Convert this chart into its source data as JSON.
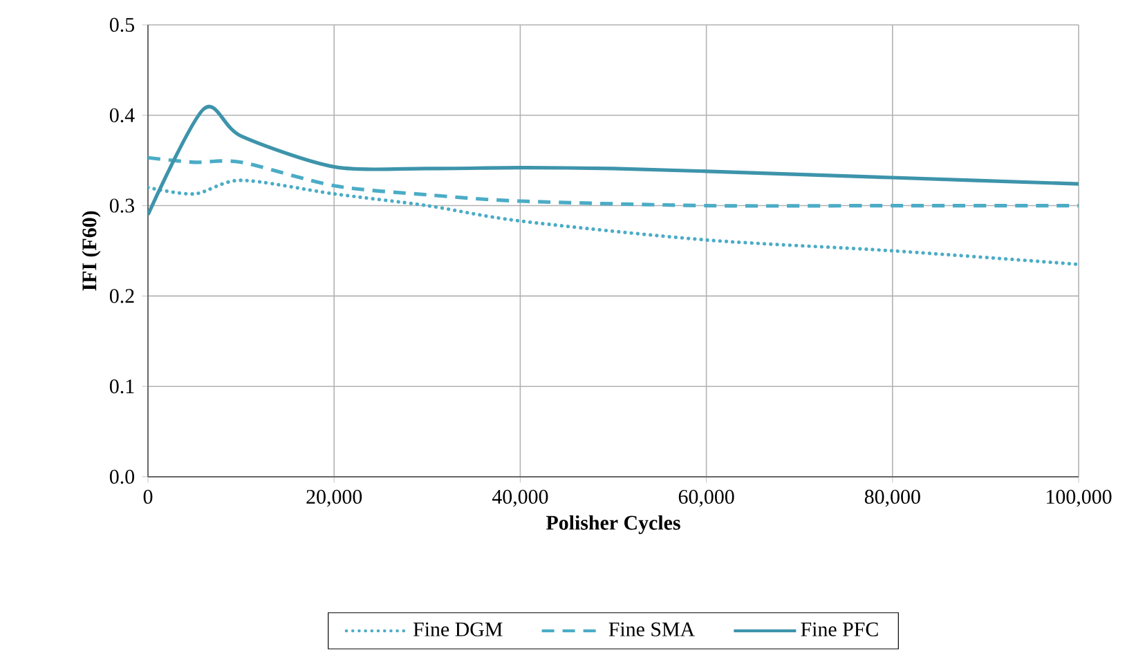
{
  "chart_data": {
    "type": "line",
    "xlabel": "Polisher Cycles",
    "ylabel": "IFI (F60)",
    "xlim": [
      0,
      100000
    ],
    "ylim": [
      0,
      0.5
    ],
    "xticks": [
      {
        "value": 0,
        "label": "0"
      },
      {
        "value": 20000,
        "label": "20,000"
      },
      {
        "value": 40000,
        "label": "40,000"
      },
      {
        "value": 60000,
        "label": "60,000"
      },
      {
        "value": 80000,
        "label": "80,000"
      },
      {
        "value": 100000,
        "label": "100,000"
      }
    ],
    "yticks": [
      {
        "value": 0,
        "label": "0.0"
      },
      {
        "value": 0.1,
        "label": "0.1"
      },
      {
        "value": 0.2,
        "label": "0.2"
      },
      {
        "value": 0.3,
        "label": "0.3"
      },
      {
        "value": 0.4,
        "label": "0.4"
      },
      {
        "value": 0.5,
        "label": "0.5"
      }
    ],
    "grid": true,
    "legend": "bottom",
    "series": [
      {
        "name": "Fine DGM",
        "color": "#4bacc6",
        "line_style": "dotted",
        "x": [
          0,
          5000,
          10000,
          20000,
          30000,
          40000,
          60000,
          80000,
          100000
        ],
        "values": [
          0.32,
          0.313,
          0.328,
          0.313,
          0.3,
          0.283,
          0.262,
          0.25,
          0.235
        ]
      },
      {
        "name": "Fine SMA",
        "color": "#4bacc6",
        "line_style": "dashed",
        "x": [
          0,
          5000,
          10000,
          20000,
          30000,
          40000,
          60000,
          80000,
          100000
        ],
        "values": [
          0.353,
          0.348,
          0.348,
          0.322,
          0.312,
          0.305,
          0.3,
          0.3,
          0.3
        ]
      },
      {
        "name": "Fine PFC",
        "color": "#3d94ab",
        "line_style": "solid",
        "x": [
          0,
          6000,
          10000,
          20000,
          30000,
          40000,
          50000,
          60000,
          80000,
          100000
        ],
        "values": [
          0.29,
          0.407,
          0.377,
          0.343,
          0.341,
          0.342,
          0.341,
          0.338,
          0.331,
          0.324
        ]
      }
    ]
  }
}
